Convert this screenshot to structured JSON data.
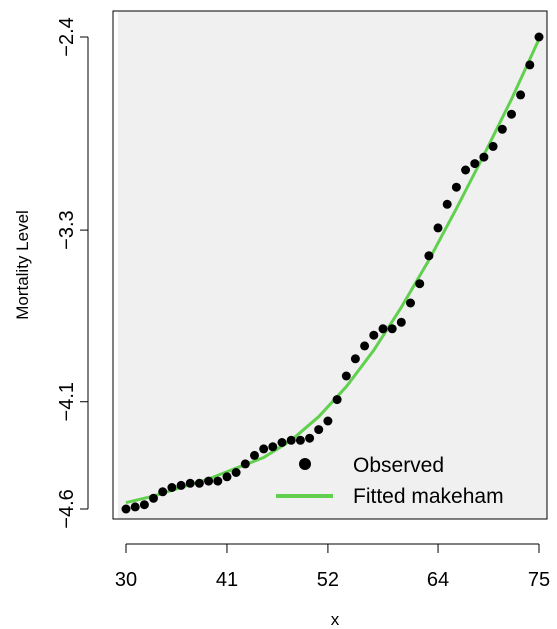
{
  "chart_data": {
    "type": "scatter",
    "xlabel": "x",
    "ylabel": "Mortality Level",
    "xlim": [
      30,
      75
    ],
    "ylim": [
      -4.6,
      -2.4
    ],
    "x_ticks": [
      30,
      41,
      52,
      64,
      75
    ],
    "y_ticks": [
      -4.6,
      -4.1,
      -3.3,
      -2.4
    ],
    "y_tick_labels": [
      "−4.6",
      "−4.1",
      "−3.3",
      "−2.4"
    ],
    "x_tick_labels": [
      "30",
      "41",
      "52",
      "64",
      "75"
    ],
    "legend": {
      "placement": "bottom-right",
      "entries": [
        {
          "label": "Observed",
          "marker": "point",
          "color": "#000000"
        },
        {
          "label": "Fitted makeham",
          "marker": "line",
          "color": "#61D04F"
        }
      ]
    },
    "series": [
      {
        "name": "Observed",
        "kind": "points",
        "color": "#000000",
        "x": [
          30,
          31,
          32,
          33,
          34,
          35,
          36,
          37,
          38,
          39,
          40,
          41,
          42,
          43,
          44,
          45,
          46,
          47,
          48,
          49,
          50,
          51,
          52,
          53,
          54,
          55,
          56,
          57,
          58,
          59,
          60,
          61,
          62,
          63,
          64,
          65,
          66,
          67,
          68,
          69,
          70,
          71,
          72,
          73,
          74,
          75
        ],
        "y": [
          -4.6,
          -4.59,
          -4.58,
          -4.55,
          -4.52,
          -4.5,
          -4.49,
          -4.48,
          -4.48,
          -4.47,
          -4.47,
          -4.45,
          -4.43,
          -4.39,
          -4.35,
          -4.32,
          -4.31,
          -4.29,
          -4.28,
          -4.28,
          -4.27,
          -4.23,
          -4.19,
          -4.09,
          -3.98,
          -3.9,
          -3.84,
          -3.79,
          -3.76,
          -3.76,
          -3.73,
          -3.64,
          -3.55,
          -3.42,
          -3.29,
          -3.18,
          -3.1,
          -3.02,
          -2.99,
          -2.96,
          -2.91,
          -2.83,
          -2.76,
          -2.67,
          -2.53,
          -2.4
        ]
      },
      {
        "name": "Fitted makeham",
        "kind": "line",
        "color": "#61D04F",
        "x": [
          30,
          33,
          36,
          39,
          42,
          45,
          48,
          51,
          54,
          57,
          60,
          63,
          66,
          69,
          72,
          75
        ],
        "y": [
          -4.57,
          -4.54,
          -4.5,
          -4.46,
          -4.41,
          -4.36,
          -4.28,
          -4.17,
          -4.03,
          -3.86,
          -3.66,
          -3.44,
          -3.2,
          -2.95,
          -2.69,
          -2.41
        ]
      }
    ]
  },
  "background": "#F0F0F0"
}
